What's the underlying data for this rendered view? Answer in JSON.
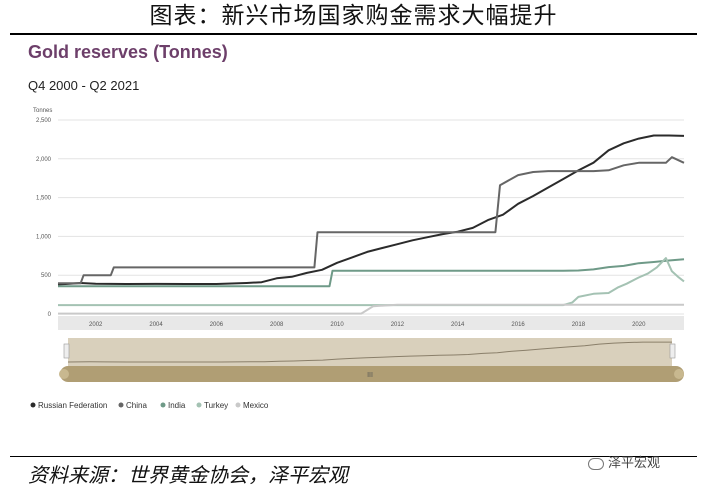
{
  "figure": {
    "title": "图表：新兴市场国家购金需求大幅提升",
    "source": "资料来源：世界黄金协会，泽平宏观",
    "watermark": "泽平宏观"
  },
  "colors": {
    "Russian Federation": "#2b2b2b",
    "China": "#666666",
    "India": "#6f9a88",
    "Turkey": "#a4c2b3",
    "Mexico": "#c9c9c9",
    "title": "#6d3f6a",
    "navigator": "#b09e74",
    "navigator_bg": "#d9d0bc"
  },
  "chart_data": {
    "type": "line",
    "title": "Gold reserves (Tonnes)",
    "subtitle": "Q4 2000 - Q2 2021",
    "ylabel": "Tonnes",
    "ylim": [
      0,
      2500
    ],
    "xlim": [
      2000.75,
      2021.5
    ],
    "y_ticks": [
      "0",
      "500",
      "1,000",
      "1,500",
      "2,000",
      "2,500"
    ],
    "y_tick_values": [
      0,
      500,
      1000,
      1500,
      2000,
      2500
    ],
    "x_ticks": [
      "2002",
      "2004",
      "2006",
      "2008",
      "2010",
      "2012",
      "2014",
      "2016",
      "2018",
      "2020"
    ],
    "x_tick_values": [
      2002,
      2004,
      2006,
      2008,
      2010,
      2012,
      2014,
      2016,
      2018,
      2020
    ],
    "grid": "horizontal",
    "legend_position": "bottom-left",
    "series": [
      {
        "name": "Russian Federation",
        "x": [
          2000.75,
          2001.5,
          2002,
          2003,
          2004,
          2005,
          2006,
          2007,
          2007.5,
          2008,
          2008.5,
          2009,
          2009.5,
          2010,
          2010.5,
          2011,
          2011.5,
          2012,
          2012.5,
          2013,
          2013.5,
          2014,
          2014.5,
          2015,
          2015.5,
          2016,
          2016.5,
          2017,
          2017.5,
          2018,
          2018.5,
          2019,
          2019.5,
          2020,
          2020.5,
          2021,
          2021.5
        ],
        "y": [
          380,
          400,
          390,
          387,
          388,
          387,
          387,
          400,
          410,
          460,
          480,
          530,
          570,
          660,
          730,
          800,
          850,
          900,
          950,
          990,
          1030,
          1060,
          1110,
          1210,
          1280,
          1420,
          1520,
          1630,
          1740,
          1850,
          1950,
          2110,
          2200,
          2260,
          2300,
          2300,
          2295
        ]
      },
      {
        "name": "China",
        "x": [
          2000.75,
          2001.5,
          2001.6,
          2002.5,
          2002.6,
          2009.25,
          2009.35,
          2015.25,
          2015.4,
          2016,
          2016.5,
          2017,
          2018,
          2018.5,
          2019,
          2019.5,
          2020,
          2020.5,
          2020.9,
          2021.1,
          2021.5
        ],
        "y": [
          395,
          395,
          500,
          500,
          600,
          600,
          1054,
          1054,
          1660,
          1790,
          1830,
          1842,
          1842,
          1842,
          1852,
          1916,
          1948,
          1948,
          1948,
          2020,
          1948
        ]
      },
      {
        "name": "India",
        "x": [
          2000.75,
          2009.75,
          2009.85,
          2017.5,
          2018,
          2018.5,
          2019,
          2019.5,
          2020,
          2020.5,
          2021,
          2021.5
        ],
        "y": [
          358,
          358,
          558,
          558,
          560,
          575,
          605,
          620,
          655,
          670,
          690,
          705
        ]
      },
      {
        "name": "Turkey",
        "x": [
          2000.75,
          2017.5,
          2017.8,
          2018,
          2018.5,
          2019,
          2019.3,
          2019.6,
          2020,
          2020.3,
          2020.6,
          2020.9,
          2021.1,
          2021.3,
          2021.5
        ],
        "y": [
          115,
          115,
          150,
          220,
          260,
          270,
          340,
          390,
          470,
          520,
          600,
          720,
          550,
          480,
          420
        ]
      },
      {
        "name": "Mexico",
        "x": [
          2000.75,
          2010.8,
          2011.2,
          2012,
          2021.5
        ],
        "y": [
          5,
          5,
          100,
          120,
          120
        ]
      }
    ],
    "navigator": {
      "handle_label": "III"
    }
  }
}
